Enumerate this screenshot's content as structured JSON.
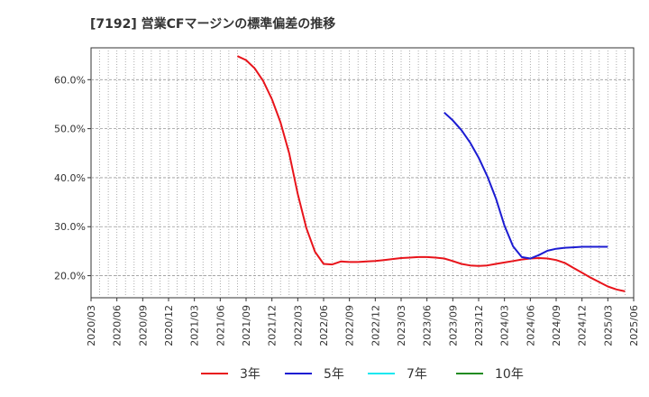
{
  "chart_data": {
    "type": "line",
    "title": "[7192]  営業CFマージンの標準偏差の推移",
    "xlabel": "",
    "ylabel": "",
    "ylim": [
      15.5,
      66.5
    ],
    "yticks": [
      20,
      30,
      40,
      50,
      60
    ],
    "ytick_labels": [
      "20.0%",
      "30.0%",
      "40.0%",
      "50.0%",
      "60.0%"
    ],
    "x_start": "2020/03",
    "x_end": "2025/06",
    "x_tick_labels": [
      "2020/03",
      "2020/06",
      "2020/09",
      "2020/12",
      "2021/03",
      "2021/06",
      "2021/09",
      "2021/12",
      "2022/03",
      "2022/06",
      "2022/09",
      "2022/12",
      "2023/03",
      "2023/06",
      "2023/09",
      "2023/12",
      "2024/03",
      "2024/06",
      "2024/09",
      "2024/12",
      "2025/03",
      "2025/06"
    ],
    "grid": true,
    "legend_position": "bottom",
    "series": [
      {
        "name": "3年",
        "color": "#e8141b",
        "start": "2021/08",
        "values": [
          64.8,
          64.0,
          62.3,
          59.7,
          56.0,
          51.3,
          45.0,
          36.7,
          29.7,
          24.9,
          22.4,
          22.3,
          22.9,
          22.8,
          22.8,
          22.9,
          23.0,
          23.2,
          23.4,
          23.6,
          23.7,
          23.8,
          23.8,
          23.7,
          23.5,
          23.0,
          22.4,
          22.1,
          22.0,
          22.1,
          22.4,
          22.7,
          23.0,
          23.3,
          23.5,
          23.6,
          23.5,
          23.2,
          22.6,
          21.6,
          20.6,
          19.6,
          18.7,
          17.8,
          17.2,
          16.8
        ]
      },
      {
        "name": "5年",
        "color": "#1c1cd2",
        "start": "2023/08",
        "values": [
          53.3,
          51.7,
          49.7,
          47.2,
          44.1,
          40.3,
          35.8,
          30.2,
          26.0,
          23.8,
          23.5,
          24.2,
          25.1,
          25.5,
          25.7,
          25.8,
          25.9,
          25.9,
          25.9,
          25.9
        ]
      },
      {
        "name": "7年",
        "color": "#16e8f0",
        "start": null,
        "values": []
      },
      {
        "name": "10年",
        "color": "#228b22",
        "start": null,
        "values": []
      }
    ]
  }
}
